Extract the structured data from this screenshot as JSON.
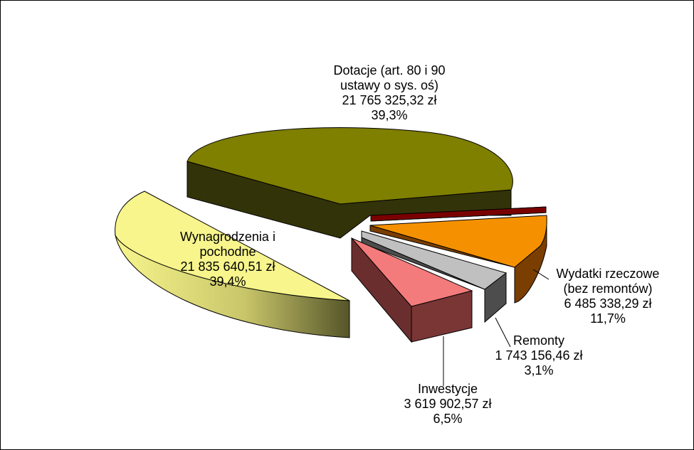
{
  "chart_data": {
    "type": "pie",
    "three_d": true,
    "exploded": true,
    "legend": "none",
    "title": "",
    "slices": [
      {
        "key": "dotacje",
        "label_lines": [
          "Dotacje (art. 80 i 90",
          "ustawy  o sys. oś)",
          "21 765 325,32 zł",
          "39,3%"
        ],
        "amount": "21 765 325,32 zł",
        "percent_label": "39,3%",
        "value": 39.3,
        "color": "#7F7F00"
      },
      {
        "key": "wydatki_rzeczowe",
        "label_lines": [
          "Wydatki rzeczowe",
          "(bez remontów)",
          "6 485 338,29 zł",
          "11,7%"
        ],
        "amount": "6 485 338,29 zł",
        "percent_label": "11,7%",
        "value": 11.7,
        "color": "#F59100"
      },
      {
        "key": "remonty",
        "label_lines": [
          "Remonty",
          "1 743 156,46 zł",
          "3,1%"
        ],
        "amount": "1 743 156,46 zł",
        "percent_label": "3,1%",
        "value": 3.1,
        "color": "#C0C0C0"
      },
      {
        "key": "inwestycje",
        "label_lines": [
          "Inwestycje",
          "3 619 902,57 zł",
          "6,5%"
        ],
        "amount": "3 619 902,57 zł",
        "percent_label": "6,5%",
        "value": 6.5,
        "color": "#F47B7B"
      },
      {
        "key": "wynagrodzenia",
        "label_lines": [
          "Wynagrodzenia i",
          "pochodne",
          "21 835 640,51 zł",
          "39,4%"
        ],
        "amount": "21 835 640,51 zł",
        "percent_label": "39,4%",
        "value": 39.4,
        "color": "#F7F58C"
      },
      {
        "key": "inne",
        "label_lines": [],
        "value": 0.9,
        "color": "#7A0000"
      }
    ]
  }
}
